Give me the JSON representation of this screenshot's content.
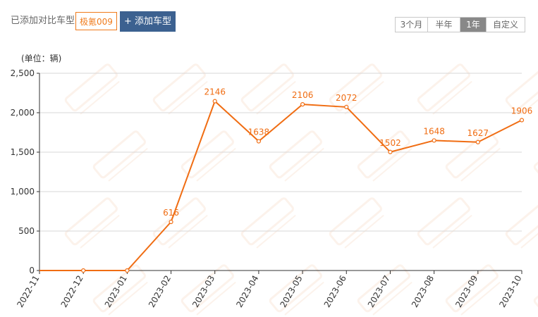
{
  "toolbar": {
    "compare_label": "已添加对比车型:",
    "car_tag": "极氪009",
    "add_button": "+ 添加车型",
    "ranges": [
      {
        "label": "3个月",
        "active": false
      },
      {
        "label": "半年",
        "active": false
      },
      {
        "label": "1年",
        "active": true
      },
      {
        "label": "自定义",
        "active": false
      }
    ]
  },
  "colors": {
    "line": "#f06d13",
    "label": "#f06d13",
    "grid": "#d7d7d7",
    "axis_text": "#333333",
    "button": "#3c6190",
    "active_range": "#888888"
  },
  "chart_data": {
    "type": "line",
    "unit_label": "(单位：辆)",
    "categories": [
      "2022-11",
      "2022-12",
      "2023-01",
      "2023-02",
      "2023-03",
      "2023-04",
      "2023-05",
      "2023-06",
      "2023-07",
      "2023-08",
      "2023-09",
      "2023-10"
    ],
    "values": [
      0,
      0,
      0,
      616,
      2146,
      1638,
      2106,
      2072,
      1502,
      1648,
      1627,
      1906
    ],
    "data_labels": [
      "",
      "",
      "",
      "616",
      "2146",
      "1638",
      "2106",
      "2072",
      "1502",
      "1648",
      "1627",
      "1906"
    ],
    "ylim": [
      0,
      2500
    ],
    "yticks": [
      0,
      500,
      1000,
      1500,
      2000,
      2500
    ],
    "ytick_labels": [
      "0",
      "500",
      "1,000",
      "1,500",
      "2,000",
      "2,500"
    ],
    "grid": true,
    "legend": false
  }
}
